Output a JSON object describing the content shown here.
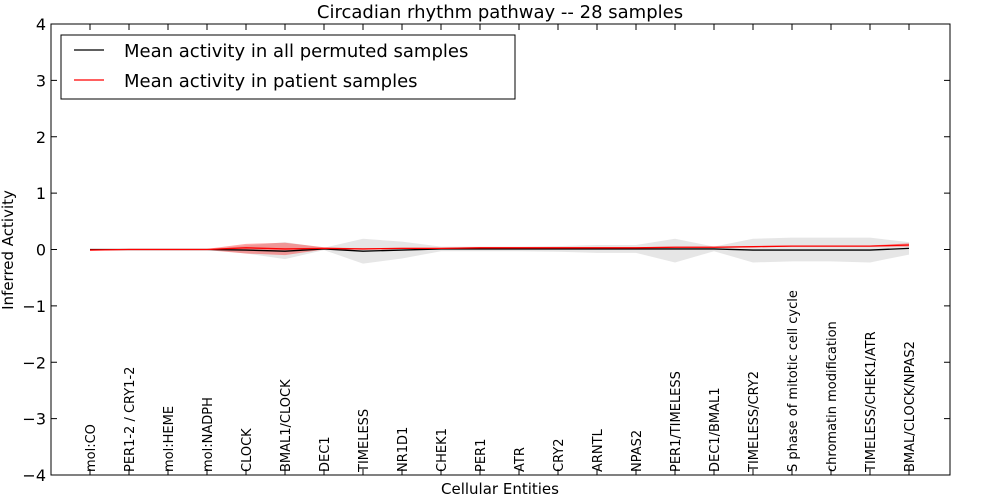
{
  "chart_data": {
    "type": "line",
    "title": "Circadian rhythm pathway -- 28 samples",
    "xlabel": "Cellular Entities",
    "ylabel": "Inferred Activity",
    "ylim": [
      -4,
      4
    ],
    "yticks": [
      4,
      3,
      2,
      1,
      0,
      -1,
      -2,
      -3,
      -4
    ],
    "ytick_labels": [
      "4",
      "3",
      "2",
      "1",
      "0",
      "−1",
      "−2",
      "−3",
      "−4"
    ],
    "legend_position": "top-left",
    "grid": false,
    "categories": [
      "mol:CO",
      "PER1-2 / CRY1-2",
      "mol:HEME",
      "mol:NADPH",
      "CLOCK",
      "BMAL1/CLOCK",
      "DEC1",
      "TIMELESS",
      "NR1D1",
      "CHEK1",
      "PER1",
      "ATR",
      "CRY2",
      "ARNTL",
      "NPAS2",
      "PER1/TIMELESS",
      "DEC1/BMAL1",
      "TIMELESS/CRY2",
      "S phase of mitotic cell cycle",
      "chromatin modification",
      "TIMELESS/CHEK1/ATR",
      "BMAL/CLOCK/NPAS2"
    ],
    "series": [
      {
        "name": "Mean activity in all permuted samples",
        "color": "#000000",
        "values": [
          0,
          0,
          0,
          0,
          -0.01,
          -0.03,
          0.01,
          -0.03,
          -0.01,
          0.01,
          0.01,
          0.01,
          0.01,
          0.01,
          0.01,
          0.01,
          0.01,
          -0.01,
          -0.01,
          -0.01,
          -0.01,
          0.02
        ],
        "band_lower": [
          0,
          0,
          0,
          0,
          -0.07,
          -0.17,
          -0.01,
          -0.25,
          -0.16,
          -0.03,
          -0.03,
          -0.03,
          -0.04,
          -0.06,
          -0.06,
          -0.23,
          -0.03,
          -0.23,
          -0.21,
          -0.21,
          -0.23,
          -0.09
        ],
        "band_upper": [
          0,
          0,
          0,
          0,
          0.07,
          0.13,
          0.03,
          0.19,
          0.14,
          0.05,
          0.05,
          0.05,
          0.06,
          0.08,
          0.08,
          0.19,
          0.05,
          0.19,
          0.21,
          0.21,
          0.21,
          0.13
        ],
        "band_color": "#c8c8c8"
      },
      {
        "name": "Mean activity in patient samples",
        "color": "#ff0000",
        "values": [
          -0.01,
          0,
          0,
          0,
          0.03,
          0.01,
          0.02,
          0.01,
          0.02,
          0.02,
          0.03,
          0.03,
          0.03,
          0.03,
          0.03,
          0.04,
          0.04,
          0.05,
          0.06,
          0.06,
          0.06,
          0.08
        ],
        "band_lower": [
          -0.02,
          -0.01,
          -0.01,
          -0.01,
          -0.07,
          -0.1,
          0.0,
          0.0,
          0.01,
          0.01,
          0.02,
          0.02,
          0.02,
          0.02,
          0.02,
          0.03,
          0.03,
          0.04,
          0.05,
          0.05,
          0.05,
          0.05
        ],
        "band_upper": [
          0.0,
          0.01,
          0.01,
          0.01,
          0.1,
          0.12,
          0.04,
          0.02,
          0.03,
          0.03,
          0.04,
          0.04,
          0.04,
          0.04,
          0.04,
          0.05,
          0.05,
          0.06,
          0.07,
          0.07,
          0.07,
          0.11
        ],
        "band_color": "#ff0000"
      }
    ]
  }
}
